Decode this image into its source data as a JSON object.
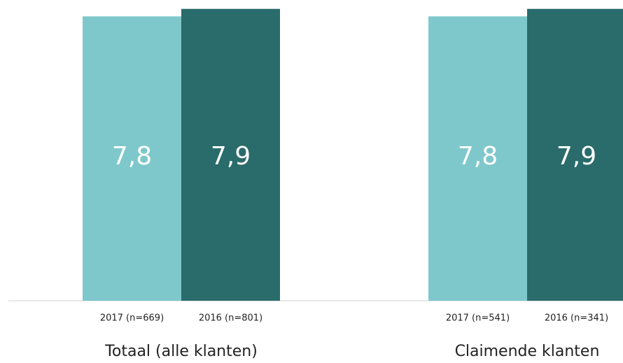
{
  "chart_data": {
    "type": "bar",
    "groups": [
      {
        "name": "Totaal (alle klanten)",
        "bars": [
          {
            "label": "2017 (n=669)",
            "value": 7.8,
            "value_label": "7,8",
            "color": "#7ec8cc"
          },
          {
            "label": "2016 (n=801)",
            "value": 7.9,
            "value_label": "7,9",
            "color": "#2a6b6b"
          }
        ]
      },
      {
        "name": "Claimende klanten",
        "bars": [
          {
            "label": "2017 (n=541)",
            "value": 7.8,
            "value_label": "7,8",
            "color": "#7ec8cc"
          },
          {
            "label": "2016 (n=341)",
            "value": 7.9,
            "value_label": "7,9",
            "color": "#2a6b6b"
          }
        ]
      }
    ],
    "ylim": [
      4,
      8
    ]
  }
}
